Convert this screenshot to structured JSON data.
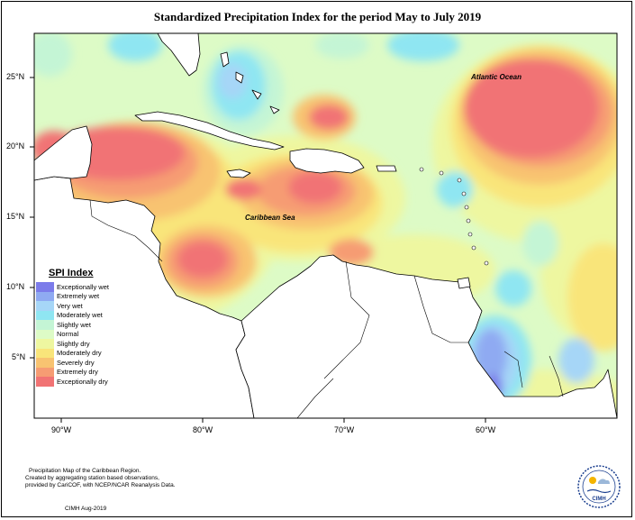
{
  "title": "Standardized Precipitation Index for the period May to July 2019",
  "lat_ticks": [
    "25°N",
    "20°N",
    "15°N",
    "10°N",
    "5°N"
  ],
  "lon_ticks": [
    "90°W",
    "80°W",
    "70°W",
    "60°W"
  ],
  "place_labels": {
    "atlantic": "Atlantic Ocean",
    "caribbean": "Caribbean Sea"
  },
  "legend": {
    "title": "SPI Index",
    "items": [
      {
        "label": "Exceptionally wet",
        "color": "#7b7bea"
      },
      {
        "label": "Extremely wet",
        "color": "#8faaf2"
      },
      {
        "label": "Very wet",
        "color": "#a6d6f7"
      },
      {
        "label": "Moderately wet",
        "color": "#8fe6f2"
      },
      {
        "label": "Slightly wet",
        "color": "#c4f5d5"
      },
      {
        "label": "Normal",
        "color": "#ddfbc6"
      },
      {
        "label": "Slightly dry",
        "color": "#eef7a0"
      },
      {
        "label": "Moderately dry",
        "color": "#f9e57a"
      },
      {
        "label": "Severely dry",
        "color": "#f8c371"
      },
      {
        "label": "Extremely dry",
        "color": "#f69c73"
      },
      {
        "label": "Exceptionally dry",
        "color": "#f17374"
      }
    ]
  },
  "footnote": {
    "line1": "Precipitation Map of the Caribbean Region.",
    "line2": "Created by aggregating station based observations,",
    "line3": "provided by CariCOF, with NCEP/NCAR Reanalysis Data.",
    "credit": "CIMH Aug-2019"
  },
  "logo_text": "CIMH"
}
